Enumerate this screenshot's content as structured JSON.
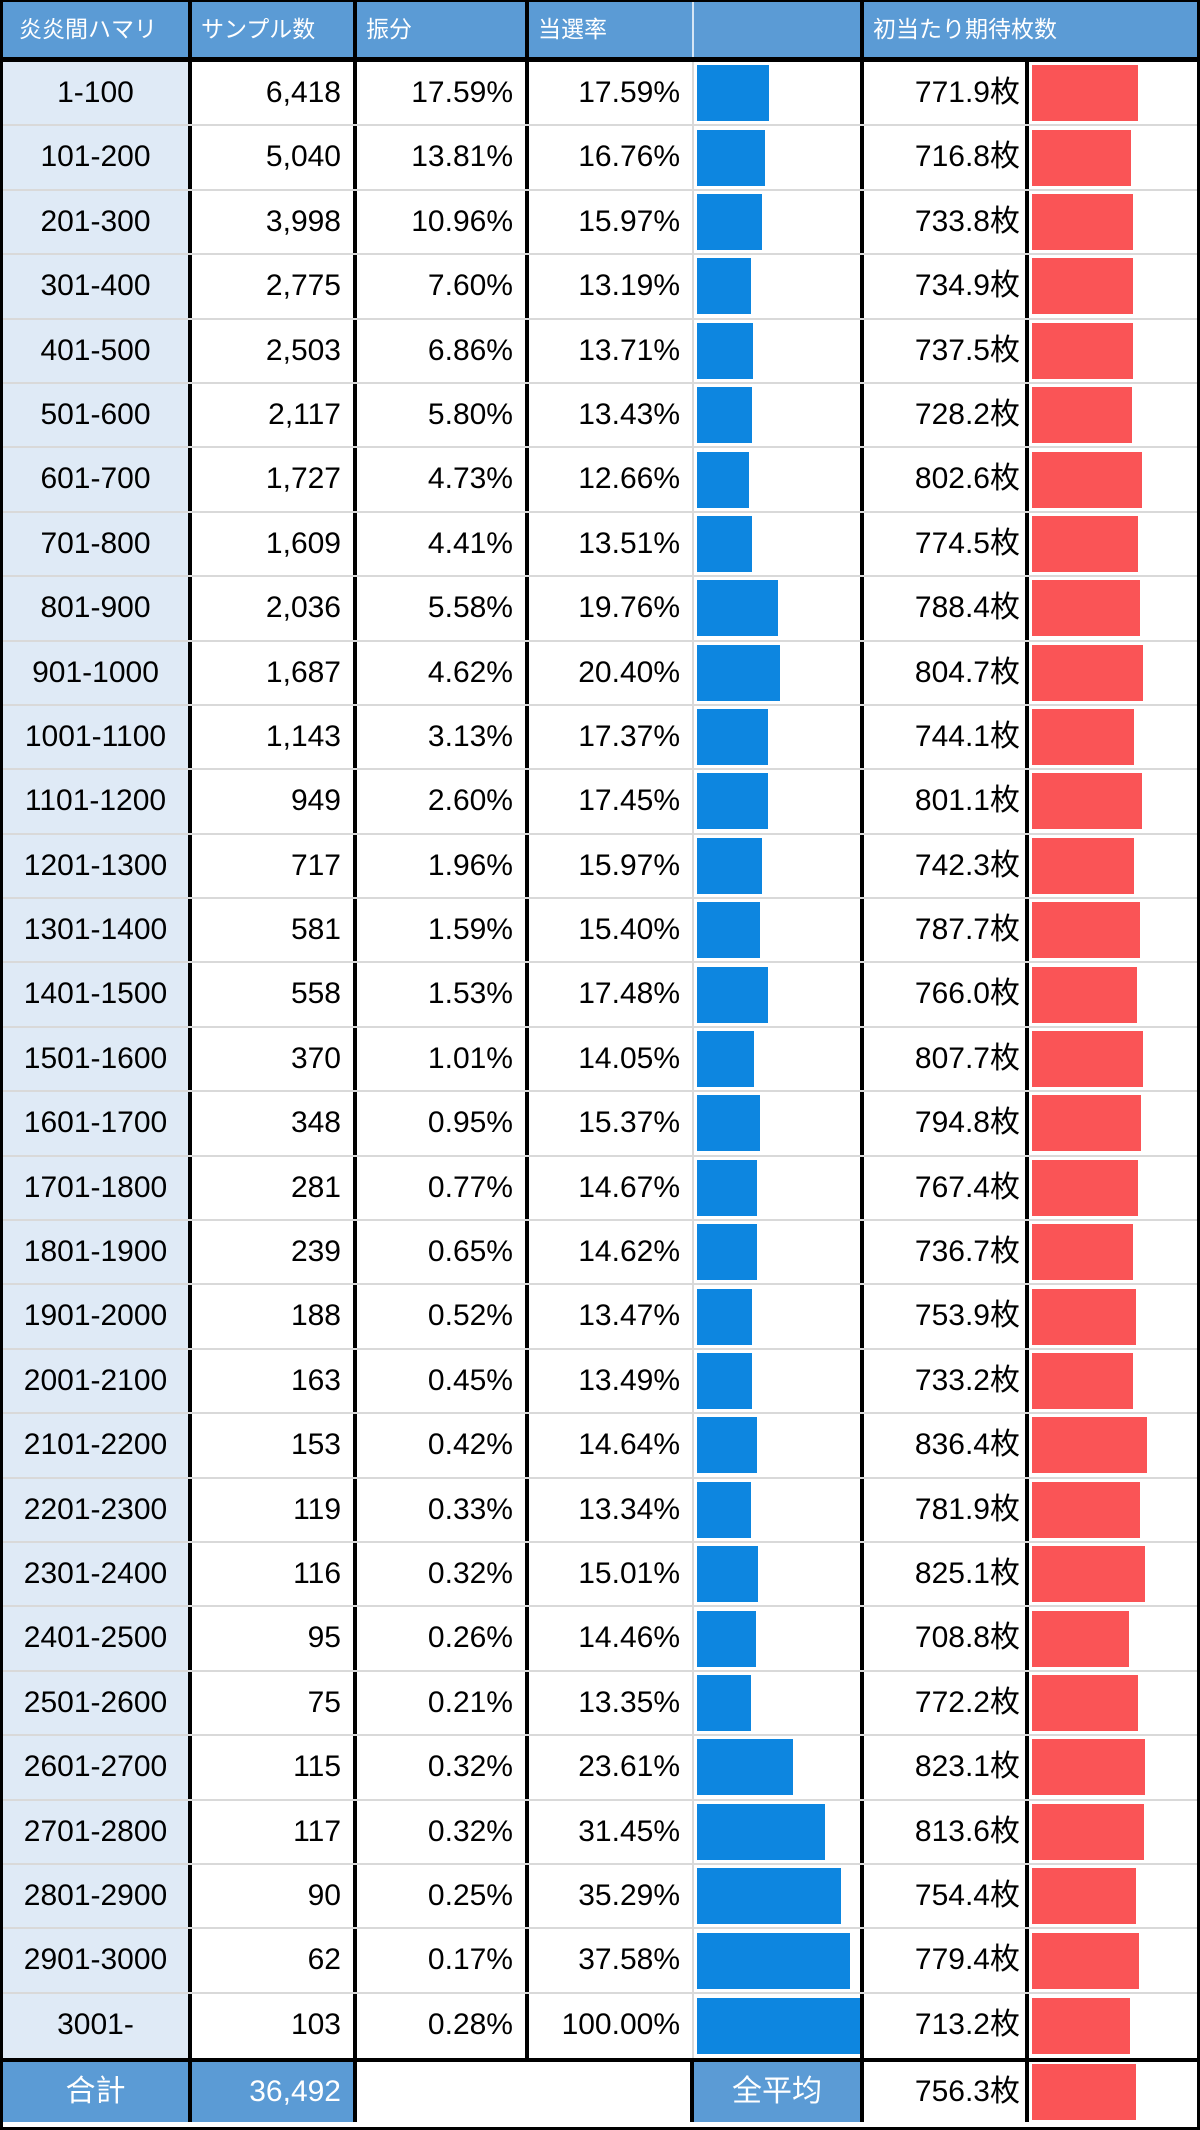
{
  "colors": {
    "header_blue": "#5B9BD5",
    "light_blue": "#DFEAF6",
    "bar_blue": "#0D86E0",
    "bar_red": "#FA5456",
    "row_line": "#D9D9D9"
  },
  "bar_scales": {
    "win_rate_full_pct": 40,
    "coins_full": 1200
  },
  "table": {
    "headers": {
      "col_hamari": "炎炎間ハマリ",
      "col_samples": "サンプル数",
      "col_distribution": "振分",
      "col_win_rate": "当選率",
      "col_rate_bar": "",
      "col_expected_coins": "初当たり期待枚数"
    },
    "rows": [
      {
        "range": "1-100",
        "samples": "6,418",
        "distribution": "17.59%",
        "win_rate": "17.59%",
        "win_rate_value": 17.59,
        "coins": "771.9枚",
        "coins_value": 771.9
      },
      {
        "range": "101-200",
        "samples": "5,040",
        "distribution": "13.81%",
        "win_rate": "16.76%",
        "win_rate_value": 16.76,
        "coins": "716.8枚",
        "coins_value": 716.8
      },
      {
        "range": "201-300",
        "samples": "3,998",
        "distribution": "10.96%",
        "win_rate": "15.97%",
        "win_rate_value": 15.97,
        "coins": "733.8枚",
        "coins_value": 733.8
      },
      {
        "range": "301-400",
        "samples": "2,775",
        "distribution": "7.60%",
        "win_rate": "13.19%",
        "win_rate_value": 13.19,
        "coins": "734.9枚",
        "coins_value": 734.9
      },
      {
        "range": "401-500",
        "samples": "2,503",
        "distribution": "6.86%",
        "win_rate": "13.71%",
        "win_rate_value": 13.71,
        "coins": "737.5枚",
        "coins_value": 737.5
      },
      {
        "range": "501-600",
        "samples": "2,117",
        "distribution": "5.80%",
        "win_rate": "13.43%",
        "win_rate_value": 13.43,
        "coins": "728.2枚",
        "coins_value": 728.2
      },
      {
        "range": "601-700",
        "samples": "1,727",
        "distribution": "4.73%",
        "win_rate": "12.66%",
        "win_rate_value": 12.66,
        "coins": "802.6枚",
        "coins_value": 802.6
      },
      {
        "range": "701-800",
        "samples": "1,609",
        "distribution": "4.41%",
        "win_rate": "13.51%",
        "win_rate_value": 13.51,
        "coins": "774.5枚",
        "coins_value": 774.5
      },
      {
        "range": "801-900",
        "samples": "2,036",
        "distribution": "5.58%",
        "win_rate": "19.76%",
        "win_rate_value": 19.76,
        "coins": "788.4枚",
        "coins_value": 788.4
      },
      {
        "range": "901-1000",
        "samples": "1,687",
        "distribution": "4.62%",
        "win_rate": "20.40%",
        "win_rate_value": 20.4,
        "coins": "804.7枚",
        "coins_value": 804.7
      },
      {
        "range": "1001-1100",
        "samples": "1,143",
        "distribution": "3.13%",
        "win_rate": "17.37%",
        "win_rate_value": 17.37,
        "coins": "744.1枚",
        "coins_value": 744.1
      },
      {
        "range": "1101-1200",
        "samples": "949",
        "distribution": "2.60%",
        "win_rate": "17.45%",
        "win_rate_value": 17.45,
        "coins": "801.1枚",
        "coins_value": 801.1
      },
      {
        "range": "1201-1300",
        "samples": "717",
        "distribution": "1.96%",
        "win_rate": "15.97%",
        "win_rate_value": 15.97,
        "coins": "742.3枚",
        "coins_value": 742.3
      },
      {
        "range": "1301-1400",
        "samples": "581",
        "distribution": "1.59%",
        "win_rate": "15.40%",
        "win_rate_value": 15.4,
        "coins": "787.7枚",
        "coins_value": 787.7
      },
      {
        "range": "1401-1500",
        "samples": "558",
        "distribution": "1.53%",
        "win_rate": "17.48%",
        "win_rate_value": 17.48,
        "coins": "766.0枚",
        "coins_value": 766.0
      },
      {
        "range": "1501-1600",
        "samples": "370",
        "distribution": "1.01%",
        "win_rate": "14.05%",
        "win_rate_value": 14.05,
        "coins": "807.7枚",
        "coins_value": 807.7
      },
      {
        "range": "1601-1700",
        "samples": "348",
        "distribution": "0.95%",
        "win_rate": "15.37%",
        "win_rate_value": 15.37,
        "coins": "794.8枚",
        "coins_value": 794.8
      },
      {
        "range": "1701-1800",
        "samples": "281",
        "distribution": "0.77%",
        "win_rate": "14.67%",
        "win_rate_value": 14.67,
        "coins": "767.4枚",
        "coins_value": 767.4
      },
      {
        "range": "1801-1900",
        "samples": "239",
        "distribution": "0.65%",
        "win_rate": "14.62%",
        "win_rate_value": 14.62,
        "coins": "736.7枚",
        "coins_value": 736.7
      },
      {
        "range": "1901-2000",
        "samples": "188",
        "distribution": "0.52%",
        "win_rate": "13.47%",
        "win_rate_value": 13.47,
        "coins": "753.9枚",
        "coins_value": 753.9
      },
      {
        "range": "2001-2100",
        "samples": "163",
        "distribution": "0.45%",
        "win_rate": "13.49%",
        "win_rate_value": 13.49,
        "coins": "733.2枚",
        "coins_value": 733.2
      },
      {
        "range": "2101-2200",
        "samples": "153",
        "distribution": "0.42%",
        "win_rate": "14.64%",
        "win_rate_value": 14.64,
        "coins": "836.4枚",
        "coins_value": 836.4
      },
      {
        "range": "2201-2300",
        "samples": "119",
        "distribution": "0.33%",
        "win_rate": "13.34%",
        "win_rate_value": 13.34,
        "coins": "781.9枚",
        "coins_value": 781.9
      },
      {
        "range": "2301-2400",
        "samples": "116",
        "distribution": "0.32%",
        "win_rate": "15.01%",
        "win_rate_value": 15.01,
        "coins": "825.1枚",
        "coins_value": 825.1
      },
      {
        "range": "2401-2500",
        "samples": "95",
        "distribution": "0.26%",
        "win_rate": "14.46%",
        "win_rate_value": 14.46,
        "coins": "708.8枚",
        "coins_value": 708.8
      },
      {
        "range": "2501-2600",
        "samples": "75",
        "distribution": "0.21%",
        "win_rate": "13.35%",
        "win_rate_value": 13.35,
        "coins": "772.2枚",
        "coins_value": 772.2
      },
      {
        "range": "2601-2700",
        "samples": "115",
        "distribution": "0.32%",
        "win_rate": "23.61%",
        "win_rate_value": 23.61,
        "coins": "823.1枚",
        "coins_value": 823.1
      },
      {
        "range": "2701-2800",
        "samples": "117",
        "distribution": "0.32%",
        "win_rate": "31.45%",
        "win_rate_value": 31.45,
        "coins": "813.6枚",
        "coins_value": 813.6
      },
      {
        "range": "2801-2900",
        "samples": "90",
        "distribution": "0.25%",
        "win_rate": "35.29%",
        "win_rate_value": 35.29,
        "coins": "754.4枚",
        "coins_value": 754.4
      },
      {
        "range": "2901-3000",
        "samples": "62",
        "distribution": "0.17%",
        "win_rate": "37.58%",
        "win_rate_value": 37.58,
        "coins": "779.4枚",
        "coins_value": 779.4
      },
      {
        "range": "3001-",
        "samples": "103",
        "distribution": "0.28%",
        "win_rate": "100.00%",
        "win_rate_value": 100.0,
        "coins": "713.2枚",
        "coins_value": 713.2
      }
    ],
    "footer": {
      "total_label": "合計",
      "total_samples": "36,492",
      "average_label": "全平均",
      "average_coins": "756.3枚",
      "average_coins_value": 756.3
    }
  }
}
